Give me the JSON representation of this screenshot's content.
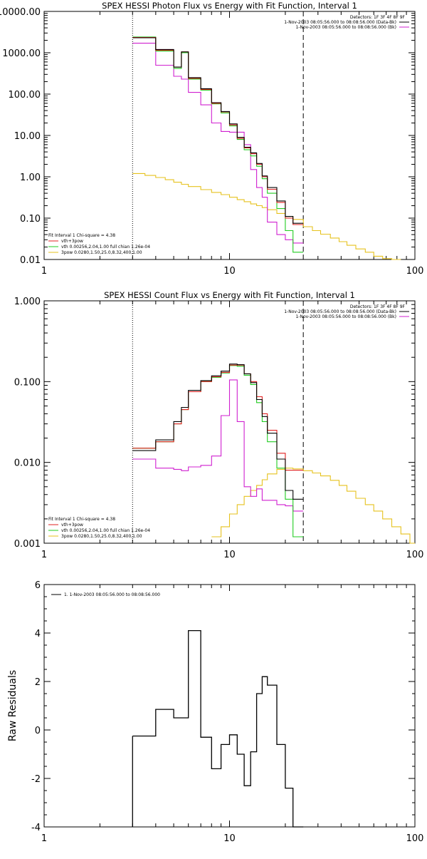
{
  "chart_data": [
    {
      "type": "line",
      "title": "SPEX HESSI Photon Flux vs Energy with Fit Function, Interval 1",
      "xscale": "log",
      "yscale": "log",
      "xlim": [
        1,
        100
      ],
      "ylim": [
        0.01,
        10000
      ],
      "xticks": [
        1,
        10,
        100
      ],
      "xticklabels": [
        "1",
        "10",
        "100"
      ],
      "yticks": [
        0.01,
        0.1,
        1,
        10,
        100,
        1000,
        10000
      ],
      "yticklabels": [
        "0.01",
        "0.10",
        "1.00",
        "10.00",
        "100.00",
        "1000.00",
        "10000.00"
      ],
      "info_lines": [
        "Detectors: 1F 3F 4F 8F 9F",
        "1-Nov-2003 08:05:56.000 to 08:08:56.000 (Data-Bk)",
        "1-Nov-2003 08:05:56.000 to 08:08:56.000 (Bk)"
      ],
      "fit_legend": [
        {
          "label": "Fit Interval 1   Chi-square = 4.38",
          "color": ""
        },
        {
          "label": "vth+3pow",
          "color": "#e02020"
        },
        {
          "label": "vth 0.00256,2.04,1.00  full chian 1.26e-04",
          "color": "#22cc22"
        },
        {
          "label": "3pow 0.0280,1.50,25.0,8.32,400,1.00",
          "color": "#e6c21e"
        }
      ],
      "vlines": [
        {
          "x": 3.0,
          "style": "dotted"
        },
        {
          "x": 25.0,
          "style": "dashed"
        }
      ],
      "edges": [
        3.0,
        3.5,
        4.0,
        4.5,
        5.0,
        5.5,
        6.0,
        7.0,
        8.0,
        9.0,
        10.0,
        11.0,
        12.0,
        13.0,
        14.0,
        15.0,
        16.0,
        18.0,
        20.0,
        22.0,
        25.0
      ],
      "series": [
        {
          "name": "1-Nov-2003 08:05:56.000 to 08:08:56.000 (Data-Bk)",
          "color": "#000000",
          "values": [
            2300,
            2300,
            1200,
            1200,
            450,
            1050,
            250,
            135,
            62,
            38,
            19,
            9,
            5.2,
            3.8,
            2.1,
            1.05,
            0.55,
            0.26,
            0.11,
            0.075
          ]
        },
        {
          "name": "1-Nov-2003 08:05:56.000 to 08:08:56.000 (Bk)",
          "color": "#d020d0",
          "values": [
            1700,
            1700,
            500,
            500,
            270,
            230,
            110,
            55,
            20,
            12.5,
            12,
            12,
            6,
            1.5,
            0.55,
            0.32,
            0.08,
            0.04,
            0.03,
            0.025
          ]
        },
        {
          "name": "vth+3pow",
          "color": "#e02020",
          "values": [
            2350,
            2350,
            1150,
            1150,
            450,
            1050,
            240,
            130,
            60,
            37,
            18,
            8.5,
            5,
            3.6,
            2,
            1,
            0.5,
            0.24,
            0.1,
            0.07
          ]
        },
        {
          "name": "vth",
          "color": "#22cc22",
          "values": [
            2400,
            2400,
            1100,
            1100,
            420,
            1000,
            230,
            125,
            58,
            35,
            17,
            8,
            4.5,
            3.2,
            1.8,
            0.9,
            0.4,
            0.17,
            0.05,
            0.015
          ]
        }
      ],
      "pow_series": {
        "name": "3pow",
        "color": "#e6c21e",
        "edges": [
          3.0,
          3.5,
          4.0,
          4.5,
          5.0,
          5.5,
          6.0,
          7.0,
          8.0,
          9.0,
          10.0,
          11.0,
          12.0,
          13.0,
          14.0,
          15.0,
          16.0,
          18.0,
          20.0,
          22.0,
          25.0,
          28.0,
          31.0,
          35.0,
          39.0,
          43.0,
          48.0,
          54.0,
          60.0,
          67.0,
          75.0,
          84.0
        ],
        "values": [
          1.2,
          1.08,
          0.96,
          0.85,
          0.74,
          0.66,
          0.58,
          0.49,
          0.42,
          0.37,
          0.32,
          0.28,
          0.25,
          0.22,
          0.2,
          0.18,
          0.16,
          0.13,
          0.11,
          0.093,
          0.062,
          0.05,
          0.041,
          0.033,
          0.027,
          0.022,
          0.018,
          0.015,
          0.012,
          0.0105,
          0.0095
        ]
      }
    },
    {
      "type": "line",
      "title": "SPEX HESSI Count Flux vs Energy with Fit Function, Interval 1",
      "xscale": "log",
      "yscale": "log",
      "xlim": [
        1,
        100
      ],
      "ylim": [
        0.001,
        1.0
      ],
      "xticks": [
        1,
        10,
        100
      ],
      "xticklabels": [
        "1",
        "10",
        "100"
      ],
      "yticks": [
        0.001,
        0.01,
        0.1,
        1.0
      ],
      "yticklabels": [
        "0.001",
        "0.010",
        "0.100",
        "1.000"
      ],
      "info_lines": [
        "Detectors: 1F 3F 4F 8F 9F",
        "1-Nov-2003 08:05:56.000 to 08:08:56.000 (Data-Bk)",
        "1-Nov-2003 08:05:56.000 to 08:08:56.000 (Bk)"
      ],
      "fit_legend": [
        {
          "label": "Fit Interval 1   Chi-square = 4.38",
          "color": ""
        },
        {
          "label": "vth+3pow",
          "color": "#e02020"
        },
        {
          "label": "vth 0.00256,2.04,1.00  full chian 1.26e-04",
          "color": "#22cc22"
        },
        {
          "label": "3pow 0.0280,1.50,25.0,8.32,400,1.00",
          "color": "#e6c21e"
        }
      ],
      "vlines": [
        {
          "x": 3.0,
          "style": "dotted"
        },
        {
          "x": 25.0,
          "style": "dashed"
        }
      ],
      "edges": [
        3.0,
        4.0,
        5.0,
        5.5,
        6.0,
        7.0,
        8.0,
        9.0,
        10.0,
        11.0,
        12.0,
        13.0,
        14.0,
        15.0,
        16.0,
        18.0,
        20.0,
        22.0,
        25.0
      ],
      "series": [
        {
          "name": "1-Nov-2003 08:05:56.000 to 08:08:56.000 (Data-Bk)",
          "color": "#000000",
          "values": [
            0.014,
            0.019,
            0.032,
            0.048,
            0.078,
            0.103,
            0.118,
            0.135,
            0.165,
            0.162,
            0.125,
            0.097,
            0.06,
            0.037,
            0.023,
            0.011,
            0.0045,
            0.0035
          ]
        },
        {
          "name": "1-Nov-2003 08:05:56.000 to 08:08:56.000 (Bk)",
          "color": "#d020d0",
          "values": [
            0.011,
            0.0085,
            0.0082,
            0.0079,
            0.0088,
            0.0092,
            0.012,
            0.038,
            0.105,
            0.032,
            0.005,
            0.0038,
            0.0047,
            0.0034,
            0.0034,
            0.003,
            0.0029,
            0.0025
          ]
        },
        {
          "name": "vth+3pow",
          "color": "#e02020",
          "values": [
            0.015,
            0.018,
            0.03,
            0.045,
            0.075,
            0.1,
            0.115,
            0.13,
            0.16,
            0.16,
            0.125,
            0.1,
            0.065,
            0.04,
            0.025,
            0.013,
            0.008,
            0.008
          ]
        },
        {
          "name": "vth",
          "color": "#22cc22",
          "values": [
            0.015,
            0.018,
            0.03,
            0.045,
            0.075,
            0.1,
            0.113,
            0.128,
            0.158,
            0.155,
            0.12,
            0.092,
            0.055,
            0.032,
            0.018,
            0.0085,
            0.0035,
            0.0012
          ]
        }
      ],
      "pow_series": {
        "name": "3pow",
        "color": "#e6c21e",
        "edges": [
          8.0,
          9.0,
          10.0,
          11.0,
          12.0,
          13.0,
          14.0,
          15.0,
          16.0,
          18.0,
          20.0,
          22.0,
          25.0,
          28.0,
          31.0,
          35.0,
          39.0,
          43.0,
          48.0,
          54.0,
          60.0,
          67.0,
          75.0,
          84.0,
          94.0,
          100.0
        ],
        "values": [
          0.0012,
          0.0016,
          0.0023,
          0.003,
          0.0038,
          0.0045,
          0.0052,
          0.0061,
          0.0072,
          0.0082,
          0.0085,
          0.0083,
          0.0079,
          0.0074,
          0.0068,
          0.006,
          0.0052,
          0.0044,
          0.0036,
          0.003,
          0.0025,
          0.002,
          0.0016,
          0.0013,
          0.001
        ]
      }
    },
    {
      "type": "line",
      "title": "",
      "xscale": "log",
      "yscale": "linear",
      "xlim": [
        1,
        100
      ],
      "ylim": [
        -4,
        6
      ],
      "ylabel": "Raw Residuals",
      "xticks": [
        1,
        10,
        100
      ],
      "xticklabels": [
        "1",
        "10",
        "100"
      ],
      "yticks": [
        -4,
        -2,
        0,
        2,
        4,
        6
      ],
      "yticklabels": [
        "-4",
        "-2",
        "0",
        "2",
        "4",
        "6"
      ],
      "legend": [
        {
          "label": "1. 1-Nov-2003 08:05:56.000 to 08:08:56.000",
          "color": "#000000"
        }
      ],
      "edges": [
        3.0,
        4.0,
        5.0,
        6.0,
        7.0,
        8.0,
        9.0,
        10.0,
        11.0,
        12.0,
        13.0,
        14.0,
        15.0,
        16.0,
        18.0,
        20.0,
        22.0,
        25.0
      ],
      "series": [
        {
          "name": "1. 1-Nov-2003 08:05:56.000 to 08:08:56.000",
          "color": "#000000",
          "values": [
            -0.25,
            0.85,
            0.5,
            4.1,
            -0.3,
            -1.6,
            -0.6,
            -0.2,
            -1.0,
            -2.3,
            -0.9,
            1.5,
            2.2,
            1.85,
            -0.6,
            -2.4,
            -4.0
          ]
        }
      ]
    }
  ]
}
